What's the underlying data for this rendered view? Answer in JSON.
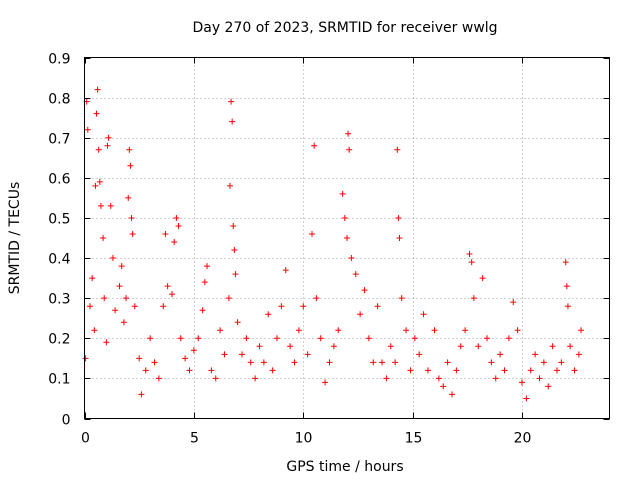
{
  "chart_data": {
    "type": "scatter",
    "title": "Day 270 of 2023, SRMTID for receiver wwlg",
    "xlabel": "GPS time / hours",
    "ylabel": "SRMTID / TECUs",
    "xlim": [
      0,
      24
    ],
    "ylim": [
      0,
      0.9
    ],
    "x_ticks": [
      0,
      5,
      10,
      15,
      20
    ],
    "x_tick_labels": [
      "0",
      "5",
      "10",
      "15",
      "20"
    ],
    "y_ticks": [
      0,
      0.1,
      0.2,
      0.3,
      0.4,
      0.5,
      0.6,
      0.7,
      0.8,
      0.9
    ],
    "y_tick_labels": [
      "0",
      "0.1",
      "0.2",
      "0.3",
      "0.4",
      "0.5",
      "0.6",
      "0.7",
      "0.8",
      "0.9"
    ],
    "grid": true,
    "marker": "+",
    "marker_color": "#ff0000",
    "series": [
      {
        "name": "SRMTID",
        "points": [
          [
            0.05,
            0.15
          ],
          [
            0.1,
            0.79
          ],
          [
            0.15,
            0.72
          ],
          [
            0.25,
            0.28
          ],
          [
            0.35,
            0.35
          ],
          [
            0.45,
            0.22
          ],
          [
            0.5,
            0.58
          ],
          [
            0.55,
            0.76
          ],
          [
            0.6,
            0.82
          ],
          [
            0.65,
            0.67
          ],
          [
            0.7,
            0.59
          ],
          [
            0.75,
            0.53
          ],
          [
            0.85,
            0.45
          ],
          [
            0.9,
            0.3
          ],
          [
            1.0,
            0.19
          ],
          [
            1.05,
            0.68
          ],
          [
            1.1,
            0.7
          ],
          [
            1.2,
            0.53
          ],
          [
            1.3,
            0.4
          ],
          [
            1.4,
            0.27
          ],
          [
            1.6,
            0.33
          ],
          [
            1.7,
            0.38
          ],
          [
            1.8,
            0.24
          ],
          [
            1.9,
            0.3
          ],
          [
            2.0,
            0.55
          ],
          [
            2.05,
            0.67
          ],
          [
            2.1,
            0.63
          ],
          [
            2.15,
            0.5
          ],
          [
            2.2,
            0.46
          ],
          [
            2.3,
            0.28
          ],
          [
            2.5,
            0.15
          ],
          [
            2.6,
            0.06
          ],
          [
            2.8,
            0.12
          ],
          [
            3.0,
            0.2
          ],
          [
            3.2,
            0.14
          ],
          [
            3.4,
            0.1
          ],
          [
            3.6,
            0.28
          ],
          [
            3.7,
            0.46
          ],
          [
            3.8,
            0.33
          ],
          [
            4.0,
            0.31
          ],
          [
            4.1,
            0.44
          ],
          [
            4.2,
            0.5
          ],
          [
            4.3,
            0.48
          ],
          [
            4.4,
            0.2
          ],
          [
            4.6,
            0.15
          ],
          [
            4.8,
            0.12
          ],
          [
            5.0,
            0.17
          ],
          [
            5.2,
            0.2
          ],
          [
            5.4,
            0.27
          ],
          [
            5.5,
            0.34
          ],
          [
            5.6,
            0.38
          ],
          [
            5.8,
            0.12
          ],
          [
            6.0,
            0.1
          ],
          [
            6.2,
            0.22
          ],
          [
            6.4,
            0.16
          ],
          [
            6.6,
            0.3
          ],
          [
            6.65,
            0.58
          ],
          [
            6.7,
            0.79
          ],
          [
            6.75,
            0.74
          ],
          [
            6.8,
            0.48
          ],
          [
            6.85,
            0.42
          ],
          [
            6.9,
            0.36
          ],
          [
            7.0,
            0.24
          ],
          [
            7.2,
            0.16
          ],
          [
            7.4,
            0.2
          ],
          [
            7.6,
            0.14
          ],
          [
            7.8,
            0.1
          ],
          [
            8.0,
            0.18
          ],
          [
            8.2,
            0.14
          ],
          [
            8.4,
            0.26
          ],
          [
            8.6,
            0.12
          ],
          [
            8.8,
            0.2
          ],
          [
            9.0,
            0.28
          ],
          [
            9.2,
            0.37
          ],
          [
            9.4,
            0.18
          ],
          [
            9.6,
            0.14
          ],
          [
            9.8,
            0.22
          ],
          [
            10.0,
            0.28
          ],
          [
            10.2,
            0.16
          ],
          [
            10.4,
            0.46
          ],
          [
            10.5,
            0.68
          ],
          [
            10.6,
            0.3
          ],
          [
            10.8,
            0.2
          ],
          [
            11.0,
            0.09
          ],
          [
            11.2,
            0.14
          ],
          [
            11.4,
            0.18
          ],
          [
            11.6,
            0.22
          ],
          [
            11.8,
            0.56
          ],
          [
            11.9,
            0.5
          ],
          [
            12.0,
            0.45
          ],
          [
            12.05,
            0.71
          ],
          [
            12.1,
            0.67
          ],
          [
            12.2,
            0.4
          ],
          [
            12.4,
            0.36
          ],
          [
            12.6,
            0.26
          ],
          [
            12.8,
            0.32
          ],
          [
            13.0,
            0.2
          ],
          [
            13.2,
            0.14
          ],
          [
            13.4,
            0.28
          ],
          [
            13.6,
            0.14
          ],
          [
            13.8,
            0.1
          ],
          [
            14.0,
            0.18
          ],
          [
            14.2,
            0.14
          ],
          [
            14.3,
            0.67
          ],
          [
            14.35,
            0.5
          ],
          [
            14.4,
            0.45
          ],
          [
            14.5,
            0.3
          ],
          [
            14.7,
            0.22
          ],
          [
            14.9,
            0.12
          ],
          [
            15.1,
            0.2
          ],
          [
            15.3,
            0.16
          ],
          [
            15.5,
            0.26
          ],
          [
            15.7,
            0.12
          ],
          [
            16.0,
            0.22
          ],
          [
            16.2,
            0.1
          ],
          [
            16.4,
            0.08
          ],
          [
            16.6,
            0.14
          ],
          [
            16.8,
            0.06
          ],
          [
            17.0,
            0.12
          ],
          [
            17.2,
            0.18
          ],
          [
            17.4,
            0.22
          ],
          [
            17.6,
            0.41
          ],
          [
            17.7,
            0.39
          ],
          [
            17.8,
            0.3
          ],
          [
            18.0,
            0.18
          ],
          [
            18.2,
            0.35
          ],
          [
            18.4,
            0.2
          ],
          [
            18.6,
            0.14
          ],
          [
            18.8,
            0.1
          ],
          [
            19.0,
            0.16
          ],
          [
            19.2,
            0.12
          ],
          [
            19.4,
            0.2
          ],
          [
            19.6,
            0.29
          ],
          [
            19.8,
            0.22
          ],
          [
            20.0,
            0.09
          ],
          [
            20.2,
            0.05
          ],
          [
            20.4,
            0.12
          ],
          [
            20.6,
            0.16
          ],
          [
            20.8,
            0.1
          ],
          [
            21.0,
            0.14
          ],
          [
            21.2,
            0.08
          ],
          [
            21.4,
            0.18
          ],
          [
            21.6,
            0.12
          ],
          [
            21.8,
            0.14
          ],
          [
            22.0,
            0.39
          ],
          [
            22.05,
            0.33
          ],
          [
            22.1,
            0.28
          ],
          [
            22.2,
            0.18
          ],
          [
            22.4,
            0.12
          ],
          [
            22.6,
            0.16
          ],
          [
            22.7,
            0.22
          ]
        ]
      }
    ]
  }
}
